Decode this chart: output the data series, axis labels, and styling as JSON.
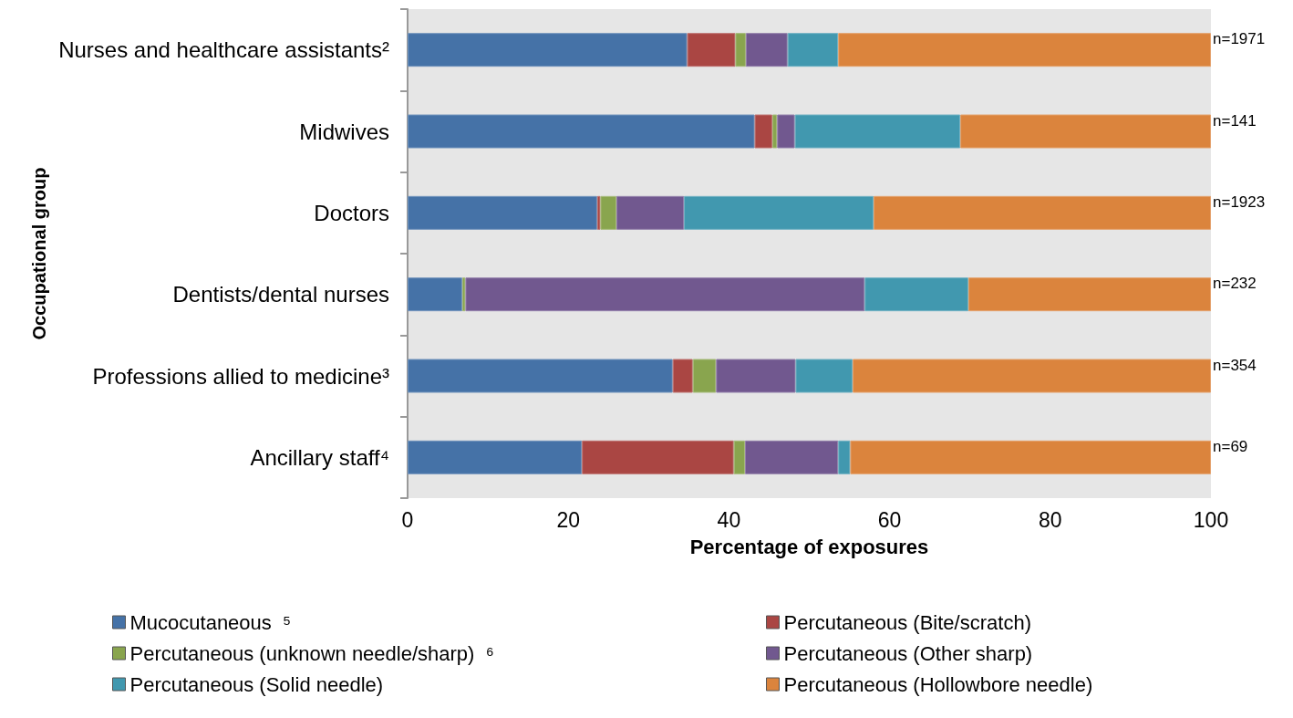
{
  "chart_data": {
    "type": "bar",
    "orientation": "horizontal",
    "stacked": true,
    "categories": [
      "Nurses and healthcare assistants²",
      "Midwives",
      "Doctors",
      "Dentists/dental nurses",
      "Professions allied to medicine³",
      "Ancillary staff⁴"
    ],
    "series": [
      {
        "name": "Mucocutaneous  ⁵",
        "color": "#4572a7",
        "values": [
          34.8,
          43.2,
          23.6,
          6.8,
          33.0,
          21.7
        ]
      },
      {
        "name": "Percutaneous (Bite/scratch)",
        "color": "#aa4643",
        "values": [
          6.0,
          2.2,
          0.4,
          0,
          2.5,
          18.9
        ]
      },
      {
        "name": "Percutaneous (unknown needle/sharp)  ⁶",
        "color": "#89a54e",
        "values": [
          1.3,
          0.6,
          2.0,
          0.4,
          2.9,
          1.4
        ]
      },
      {
        "name": "Percutaneous (Other sharp)",
        "color": "#71588f",
        "values": [
          5.2,
          2.2,
          8.4,
          49.7,
          9.9,
          11.6
        ]
      },
      {
        "name": "Percutaneous (Solid needle)",
        "color": "#4198af",
        "values": [
          6.3,
          20.6,
          23.6,
          12.9,
          7.1,
          1.5
        ]
      },
      {
        "name": "Percutaneous (Hollowbore needle)",
        "color": "#db843d",
        "values": [
          46.4,
          31.2,
          42.0,
          30.2,
          44.6,
          44.9
        ]
      }
    ],
    "xlim": [
      0,
      100
    ],
    "xticks": [
      0,
      20,
      40,
      60,
      80,
      100
    ],
    "xlabel": "Percentage of exposures",
    "ylabel": "Occupational group",
    "grid": false,
    "legend": "bottom",
    "annotations": [
      "n=1971",
      "n=141",
      "n=1923",
      "n=232",
      "n=354",
      "n=69"
    ]
  }
}
